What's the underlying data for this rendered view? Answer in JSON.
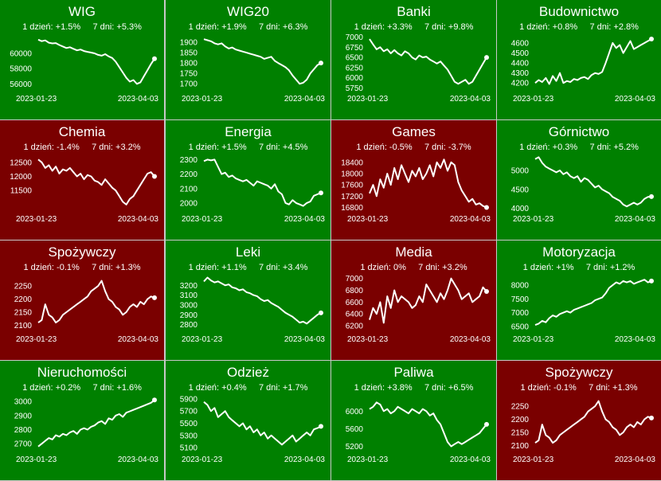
{
  "colors": {
    "up": "#008000",
    "down": "#7a0000",
    "line": "#ffffff",
    "border": "#c8c8c8"
  },
  "tiles": [
    {
      "title": "WIG",
      "d1": "1 dzień: +1.5%",
      "d7": "7 dni: +5.3%",
      "trend": "up",
      "x_start": "2023-01-23",
      "x_end": "2023-04-03",
      "ticks": [
        60000,
        58000,
        56000
      ],
      "ylim": [
        55200,
        62400
      ],
      "values": [
        61800,
        61600,
        61700,
        61400,
        61300,
        61350,
        61100,
        60900,
        60700,
        60800,
        60600,
        60400,
        60500,
        60300,
        60200,
        60100,
        60000,
        59800,
        59700,
        59900,
        59600,
        59400,
        58900,
        58200,
        57500,
        56800,
        56300,
        56500,
        56000,
        56200,
        57000,
        57800,
        58600,
        59300
      ]
    },
    {
      "title": "WIG20",
      "d1": "1 dzień: +1.9%",
      "d7": "7 dni: +6.3%",
      "trend": "up",
      "x_start": "2023-01-23",
      "x_end": "2023-04-03",
      "ticks": [
        1900,
        1850,
        1800,
        1750,
        1700
      ],
      "ylim": [
        1670,
        1935
      ],
      "values": [
        1915,
        1910,
        1905,
        1895,
        1890,
        1895,
        1880,
        1870,
        1875,
        1865,
        1860,
        1855,
        1850,
        1845,
        1840,
        1835,
        1830,
        1820,
        1825,
        1830,
        1810,
        1800,
        1790,
        1780,
        1765,
        1740,
        1720,
        1700,
        1705,
        1720,
        1750,
        1770,
        1790,
        1800
      ]
    },
    {
      "title": "Banki",
      "d1": "1 dzień: +3.3%",
      "d7": "7 dni: +9.8%",
      "trend": "up",
      "x_start": "2023-01-23",
      "x_end": "2023-04-03",
      "ticks": [
        7000,
        6750,
        6500,
        6250,
        6000,
        5750
      ],
      "ylim": [
        5700,
        7050
      ],
      "values": [
        6950,
        6820,
        6700,
        6750,
        6650,
        6700,
        6600,
        6680,
        6600,
        6550,
        6650,
        6600,
        6500,
        6450,
        6550,
        6500,
        6520,
        6450,
        6400,
        6350,
        6400,
        6300,
        6200,
        6050,
        5900,
        5850,
        5900,
        5950,
        5850,
        5900,
        6050,
        6200,
        6350,
        6500
      ]
    },
    {
      "title": "Budownictwo",
      "d1": "1 dzień: +0.8%",
      "d7": "7 dni: +2.8%",
      "trend": "up",
      "x_start": "2023-01-23",
      "x_end": "2023-04-03",
      "ticks": [
        4600,
        4500,
        4400,
        4300,
        4200
      ],
      "ylim": [
        4130,
        4680
      ],
      "values": [
        4200,
        4230,
        4210,
        4250,
        4190,
        4270,
        4220,
        4300,
        4200,
        4220,
        4210,
        4240,
        4230,
        4250,
        4260,
        4240,
        4280,
        4300,
        4290,
        4310,
        4400,
        4500,
        4600,
        4550,
        4580,
        4500,
        4560,
        4620,
        4540,
        4560,
        4580,
        4600,
        4620,
        4640
      ]
    },
    {
      "title": "Chemia",
      "d1": "1 dzień: -1.4%",
      "d7": "7 dni: +3.2%",
      "trend": "down",
      "x_start": "2023-01-23",
      "x_end": "2023-04-03",
      "ticks": [
        12500,
        12000,
        11500
      ],
      "ylim": [
        10800,
        12750
      ],
      "values": [
        12600,
        12500,
        12300,
        12400,
        12200,
        12350,
        12100,
        12250,
        12200,
        12300,
        12150,
        12000,
        12100,
        11900,
        12050,
        12000,
        11850,
        11800,
        11700,
        11900,
        11750,
        11600,
        11500,
        11300,
        11100,
        11000,
        11200,
        11300,
        11500,
        11700,
        11900,
        12100,
        12150,
        12000
      ]
    },
    {
      "title": "Energia",
      "d1": "1 dzień: +1.5%",
      "d7": "7 dni: +4.5%",
      "trend": "up",
      "x_start": "2023-01-23",
      "x_end": "2023-04-03",
      "ticks": [
        2300,
        2200,
        2100,
        2000
      ],
      "ylim": [
        1950,
        2330
      ],
      "values": [
        2290,
        2300,
        2295,
        2300,
        2250,
        2200,
        2210,
        2180,
        2190,
        2170,
        2160,
        2150,
        2160,
        2140,
        2120,
        2150,
        2140,
        2130,
        2120,
        2100,
        2130,
        2080,
        2060,
        2000,
        1990,
        2020,
        2000,
        1990,
        1980,
        2000,
        2010,
        2050,
        2060,
        2070
      ]
    },
    {
      "title": "Games",
      "d1": "1 dzień: -0.5%",
      "d7": "7 dni: -3.7%",
      "trend": "down",
      "x_start": "2023-01-23",
      "x_end": "2023-04-03",
      "ticks": [
        18400,
        18000,
        17600,
        17200,
        16800
      ],
      "ylim": [
        16700,
        18650
      ],
      "values": [
        17300,
        17600,
        17200,
        17800,
        17500,
        18000,
        17600,
        18200,
        17800,
        18300,
        18000,
        17700,
        18100,
        17900,
        18200,
        17800,
        18000,
        18300,
        17900,
        18400,
        18200,
        18500,
        18100,
        18400,
        18300,
        17700,
        17400,
        17200,
        17000,
        17100,
        16900,
        16950,
        16850,
        16800
      ]
    },
    {
      "title": "Górnictwo",
      "d1": "1 dzień: +0.3%",
      "d7": "7 dni: +5.2%",
      "trend": "up",
      "x_start": "2023-01-23",
      "x_end": "2023-04-03",
      "ticks": [
        5000,
        4500,
        4000
      ],
      "ylim": [
        3950,
        5400
      ],
      "values": [
        5300,
        5350,
        5200,
        5100,
        5050,
        5000,
        4950,
        5000,
        4900,
        4950,
        4850,
        4800,
        4850,
        4700,
        4800,
        4750,
        4650,
        4550,
        4600,
        4500,
        4450,
        4400,
        4300,
        4250,
        4200,
        4100,
        4050,
        4100,
        4150,
        4100,
        4150,
        4250,
        4300,
        4310
      ]
    },
    {
      "title": "Spożywczy",
      "d1": "1 dzień: -0.1%",
      "d7": "7 dni: +1.3%",
      "trend": "down",
      "x_start": "2023-01-23",
      "x_end": "2023-04-03",
      "ticks": [
        2250,
        2200,
        2150,
        2100
      ],
      "ylim": [
        2080,
        2290
      ],
      "values": [
        2110,
        2120,
        2180,
        2140,
        2130,
        2110,
        2120,
        2140,
        2150,
        2160,
        2170,
        2180,
        2190,
        2200,
        2210,
        2230,
        2240,
        2250,
        2270,
        2230,
        2200,
        2190,
        2170,
        2160,
        2140,
        2150,
        2170,
        2180,
        2170,
        2190,
        2180,
        2200,
        2210,
        2205
      ]
    },
    {
      "title": "Leki",
      "d1": "1 dzień: +1.1%",
      "d7": "7 dni: +3.4%",
      "trend": "up",
      "x_start": "2023-01-23",
      "x_end": "2023-04-03",
      "ticks": [
        3200,
        3100,
        3000,
        2900,
        2800
      ],
      "ylim": [
        2740,
        3300
      ],
      "values": [
        3240,
        3280,
        3250,
        3230,
        3240,
        3220,
        3200,
        3210,
        3180,
        3170,
        3150,
        3160,
        3130,
        3120,
        3100,
        3090,
        3060,
        3040,
        3050,
        3020,
        3000,
        2980,
        2950,
        2920,
        2900,
        2880,
        2850,
        2820,
        2830,
        2810,
        2840,
        2870,
        2900,
        2920
      ]
    },
    {
      "title": "Media",
      "d1": "1 dzień: 0%",
      "d7": "7 dni: +3.2%",
      "trend": "down",
      "x_start": "2023-01-23",
      "x_end": "2023-04-03",
      "ticks": [
        7000,
        6800,
        6600,
        6400,
        6200
      ],
      "ylim": [
        6120,
        7050
      ],
      "values": [
        6300,
        6500,
        6400,
        6600,
        6250,
        6700,
        6500,
        6800,
        6600,
        6700,
        6650,
        6600,
        6500,
        6550,
        6700,
        6600,
        6900,
        6800,
        6700,
        6600,
        6750,
        6650,
        6800,
        7000,
        6900,
        6800,
        6650,
        6700,
        6750,
        6600,
        6650,
        6700,
        6850,
        6780
      ]
    },
    {
      "title": "Motoryzacja",
      "d1": "1 dzień: +1%",
      "d7": "7 dni: +1.2%",
      "trend": "up",
      "x_start": "2023-01-23",
      "x_end": "2023-04-03",
      "ticks": [
        8000,
        7500,
        7000,
        6500
      ],
      "ylim": [
        6350,
        8350
      ],
      "values": [
        6550,
        6600,
        6700,
        6650,
        6800,
        6900,
        6850,
        6950,
        7000,
        7050,
        7000,
        7100,
        7150,
        7200,
        7250,
        7300,
        7350,
        7450,
        7500,
        7550,
        7700,
        7900,
        8000,
        8100,
        8050,
        8150,
        8100,
        8150,
        8050,
        8100,
        8150,
        8200,
        8100,
        8150
      ]
    },
    {
      "title": "Nieruchomości",
      "d1": "1 dzień: +0.2%",
      "d7": "7 dni: +1.6%",
      "trend": "up",
      "x_start": "2023-01-23",
      "x_end": "2023-04-03",
      "ticks": [
        3000,
        2900,
        2800,
        2700
      ],
      "ylim": [
        2650,
        3040
      ],
      "values": [
        2680,
        2700,
        2720,
        2740,
        2730,
        2760,
        2750,
        2770,
        2760,
        2780,
        2790,
        2770,
        2800,
        2810,
        2800,
        2820,
        2830,
        2850,
        2860,
        2840,
        2880,
        2870,
        2900,
        2910,
        2890,
        2920,
        2930,
        2940,
        2950,
        2960,
        2970,
        2980,
        2990,
        3010
      ]
    },
    {
      "title": "Odzież",
      "d1": "1 dzień: +0.4%",
      "d7": "7 dni: +1.7%",
      "trend": "up",
      "x_start": "2023-01-23",
      "x_end": "2023-04-03",
      "ticks": [
        5900,
        5700,
        5500,
        5300,
        5100
      ],
      "ylim": [
        5050,
        5950
      ],
      "values": [
        5850,
        5800,
        5700,
        5750,
        5600,
        5650,
        5700,
        5600,
        5550,
        5500,
        5450,
        5500,
        5400,
        5450,
        5350,
        5400,
        5300,
        5350,
        5250,
        5300,
        5250,
        5200,
        5150,
        5200,
        5250,
        5300,
        5200,
        5250,
        5300,
        5350,
        5300,
        5400,
        5420,
        5450
      ]
    },
    {
      "title": "Paliwa",
      "d1": "1 dzień: +3.8%",
      "d7": "7 dni: +6.5%",
      "trend": "up",
      "x_start": "2023-01-23",
      "x_end": "2023-04-03",
      "ticks": [
        6000,
        5600,
        5200
      ],
      "ylim": [
        5100,
        6350
      ],
      "values": [
        6050,
        6100,
        6200,
        6150,
        6000,
        6050,
        5950,
        6000,
        6100,
        6050,
        6000,
        5950,
        6050,
        6000,
        5950,
        6050,
        6000,
        5900,
        5950,
        5800,
        5700,
        5500,
        5300,
        5200,
        5250,
        5300,
        5250,
        5300,
        5350,
        5400,
        5450,
        5500,
        5600,
        5700
      ]
    },
    {
      "title": "Spożywczy",
      "d1": "1 dzień: -0.1%",
      "d7": "7 dni: +1.3%",
      "trend": "down",
      "x_start": "2023-01-23",
      "x_end": "2023-04-03",
      "ticks": [
        2250,
        2200,
        2150,
        2100
      ],
      "ylim": [
        2080,
        2290
      ],
      "values": [
        2110,
        2120,
        2180,
        2140,
        2130,
        2110,
        2120,
        2140,
        2150,
        2160,
        2170,
        2180,
        2190,
        2200,
        2210,
        2230,
        2240,
        2250,
        2270,
        2230,
        2200,
        2190,
        2170,
        2160,
        2140,
        2150,
        2170,
        2180,
        2170,
        2190,
        2180,
        2200,
        2210,
        2205
      ]
    }
  ]
}
